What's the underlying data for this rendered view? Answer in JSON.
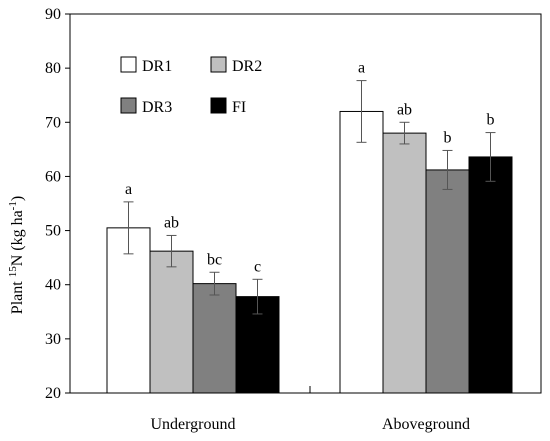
{
  "chart_data": {
    "type": "bar",
    "title": "",
    "xlabel": "",
    "ylabel": {
      "prefix": "Plant ",
      "superscript1": "15",
      "middle": "N (kg ha",
      "superscript2": "-1",
      "suffix": ")"
    },
    "ylim": [
      20,
      90
    ],
    "yticks": [
      20,
      30,
      40,
      50,
      60,
      70,
      80,
      90
    ],
    "grid": false,
    "legend_position": "top-left",
    "categories": [
      "Underground",
      "Aboveground"
    ],
    "series": [
      {
        "name": "DR1",
        "color": "#ffffff",
        "values": [
          50.5,
          72.0
        ],
        "errors": [
          4.8,
          5.7
        ],
        "letters": [
          "a",
          "a"
        ]
      },
      {
        "name": "DR2",
        "color": "#c0c0c0",
        "values": [
          46.2,
          68.0
        ],
        "errors": [
          2.9,
          2.0
        ],
        "letters": [
          "ab",
          "ab"
        ]
      },
      {
        "name": "DR3",
        "color": "#808080",
        "values": [
          40.2,
          61.2
        ],
        "errors": [
          2.1,
          3.6
        ],
        "letters": [
          "bc",
          "b"
        ]
      },
      {
        "name": "FI",
        "color": "#000000",
        "values": [
          37.8,
          63.6
        ],
        "errors": [
          3.2,
          4.5
        ],
        "letters": [
          "c",
          "b"
        ]
      }
    ]
  }
}
